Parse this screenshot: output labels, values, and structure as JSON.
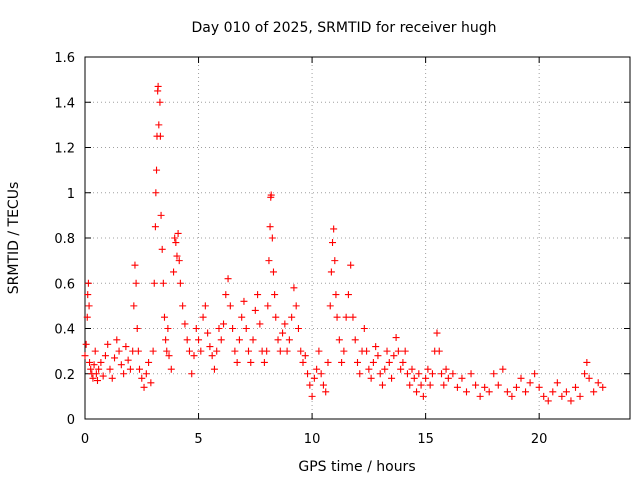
{
  "chart_data": {
    "type": "scatter",
    "title": "Day 010 of 2025, SRMTID for receiver hugh",
    "xlabel": "GPS time / hours",
    "ylabel": "SRMTID / TECUs",
    "xlim": [
      0,
      24
    ],
    "ylim": [
      0,
      1.6
    ],
    "x_ticks": [
      0,
      5,
      10,
      15,
      20
    ],
    "x_tick_labels": [
      "0",
      "5",
      "10",
      "15",
      "20"
    ],
    "y_ticks": [
      0,
      0.2,
      0.4,
      0.6,
      0.8,
      1,
      1.2,
      1.4,
      1.6
    ],
    "y_tick_labels": [
      "0",
      "0.2",
      "0.4",
      "0.6",
      "0.8",
      "1",
      "1.2",
      "1.4",
      "1.6"
    ],
    "grid": true,
    "marker": "+",
    "color": "#ff0000",
    "series": [
      {
        "name": "SRMTID",
        "points": [
          [
            0.0,
            0.28
          ],
          [
            0.05,
            0.33
          ],
          [
            0.1,
            0.45
          ],
          [
            0.12,
            0.55
          ],
          [
            0.15,
            0.6
          ],
          [
            0.18,
            0.5
          ],
          [
            0.2,
            0.25
          ],
          [
            0.25,
            0.22
          ],
          [
            0.3,
            0.2
          ],
          [
            0.35,
            0.18
          ],
          [
            0.4,
            0.24
          ],
          [
            0.45,
            0.3
          ],
          [
            0.5,
            0.2
          ],
          [
            0.55,
            0.17
          ],
          [
            0.6,
            0.22
          ],
          [
            0.7,
            0.25
          ],
          [
            0.8,
            0.19
          ],
          [
            0.9,
            0.28
          ],
          [
            1.0,
            0.33
          ],
          [
            1.1,
            0.22
          ],
          [
            1.2,
            0.18
          ],
          [
            1.3,
            0.27
          ],
          [
            1.4,
            0.35
          ],
          [
            1.5,
            0.3
          ],
          [
            1.6,
            0.24
          ],
          [
            1.7,
            0.2
          ],
          [
            1.8,
            0.32
          ],
          [
            1.9,
            0.26
          ],
          [
            2.0,
            0.22
          ],
          [
            2.1,
            0.3
          ],
          [
            2.15,
            0.5
          ],
          [
            2.2,
            0.68
          ],
          [
            2.25,
            0.6
          ],
          [
            2.3,
            0.4
          ],
          [
            2.35,
            0.3
          ],
          [
            2.4,
            0.22
          ],
          [
            2.5,
            0.18
          ],
          [
            2.6,
            0.14
          ],
          [
            2.7,
            0.2
          ],
          [
            2.8,
            0.25
          ],
          [
            2.9,
            0.16
          ],
          [
            3.0,
            0.3
          ],
          [
            3.05,
            0.6
          ],
          [
            3.1,
            0.85
          ],
          [
            3.12,
            1.0
          ],
          [
            3.15,
            1.1
          ],
          [
            3.17,
            1.25
          ],
          [
            3.2,
            1.45
          ],
          [
            3.22,
            1.47
          ],
          [
            3.25,
            1.3
          ],
          [
            3.3,
            1.4
          ],
          [
            3.32,
            1.25
          ],
          [
            3.35,
            0.9
          ],
          [
            3.4,
            0.75
          ],
          [
            3.45,
            0.6
          ],
          [
            3.5,
            0.45
          ],
          [
            3.55,
            0.35
          ],
          [
            3.6,
            0.3
          ],
          [
            3.65,
            0.4
          ],
          [
            3.7,
            0.28
          ],
          [
            3.8,
            0.22
          ],
          [
            3.9,
            0.65
          ],
          [
            3.95,
            0.8
          ],
          [
            4.0,
            0.78
          ],
          [
            4.05,
            0.72
          ],
          [
            4.1,
            0.82
          ],
          [
            4.15,
            0.7
          ],
          [
            4.2,
            0.6
          ],
          [
            4.3,
            0.5
          ],
          [
            4.4,
            0.42
          ],
          [
            4.5,
            0.35
          ],
          [
            4.6,
            0.3
          ],
          [
            4.7,
            0.2
          ],
          [
            4.8,
            0.28
          ],
          [
            4.9,
            0.4
          ],
          [
            5.0,
            0.35
          ],
          [
            5.1,
            0.3
          ],
          [
            5.2,
            0.45
          ],
          [
            5.3,
            0.5
          ],
          [
            5.4,
            0.38
          ],
          [
            5.5,
            0.32
          ],
          [
            5.6,
            0.28
          ],
          [
            5.7,
            0.22
          ],
          [
            5.8,
            0.3
          ],
          [
            5.9,
            0.4
          ],
          [
            6.0,
            0.35
          ],
          [
            6.1,
            0.42
          ],
          [
            6.2,
            0.55
          ],
          [
            6.3,
            0.62
          ],
          [
            6.4,
            0.5
          ],
          [
            6.5,
            0.4
          ],
          [
            6.6,
            0.3
          ],
          [
            6.7,
            0.25
          ],
          [
            6.8,
            0.35
          ],
          [
            6.9,
            0.45
          ],
          [
            7.0,
            0.52
          ],
          [
            7.1,
            0.4
          ],
          [
            7.2,
            0.3
          ],
          [
            7.3,
            0.25
          ],
          [
            7.4,
            0.35
          ],
          [
            7.5,
            0.48
          ],
          [
            7.6,
            0.55
          ],
          [
            7.7,
            0.42
          ],
          [
            7.8,
            0.3
          ],
          [
            7.9,
            0.25
          ],
          [
            8.0,
            0.3
          ],
          [
            8.05,
            0.5
          ],
          [
            8.1,
            0.7
          ],
          [
            8.15,
            0.85
          ],
          [
            8.18,
            0.98
          ],
          [
            8.2,
            0.99
          ],
          [
            8.25,
            0.8
          ],
          [
            8.3,
            0.65
          ],
          [
            8.35,
            0.55
          ],
          [
            8.4,
            0.45
          ],
          [
            8.5,
            0.35
          ],
          [
            8.6,
            0.3
          ],
          [
            8.7,
            0.38
          ],
          [
            8.8,
            0.42
          ],
          [
            8.9,
            0.3
          ],
          [
            9.0,
            0.35
          ],
          [
            9.1,
            0.45
          ],
          [
            9.2,
            0.58
          ],
          [
            9.3,
            0.5
          ],
          [
            9.4,
            0.4
          ],
          [
            9.5,
            0.3
          ],
          [
            9.6,
            0.25
          ],
          [
            9.7,
            0.28
          ],
          [
            9.8,
            0.2
          ],
          [
            9.9,
            0.15
          ],
          [
            10.0,
            0.1
          ],
          [
            10.1,
            0.18
          ],
          [
            10.2,
            0.22
          ],
          [
            10.3,
            0.3
          ],
          [
            10.4,
            0.2
          ],
          [
            10.5,
            0.15
          ],
          [
            10.6,
            0.12
          ],
          [
            10.7,
            0.25
          ],
          [
            10.8,
            0.5
          ],
          [
            10.85,
            0.65
          ],
          [
            10.9,
            0.78
          ],
          [
            10.95,
            0.84
          ],
          [
            11.0,
            0.7
          ],
          [
            11.05,
            0.55
          ],
          [
            11.1,
            0.45
          ],
          [
            11.2,
            0.35
          ],
          [
            11.3,
            0.25
          ],
          [
            11.4,
            0.3
          ],
          [
            11.5,
            0.45
          ],
          [
            11.6,
            0.55
          ],
          [
            11.7,
            0.68
          ],
          [
            11.8,
            0.45
          ],
          [
            11.9,
            0.35
          ],
          [
            12.0,
            0.25
          ],
          [
            12.1,
            0.2
          ],
          [
            12.2,
            0.3
          ],
          [
            12.3,
            0.4
          ],
          [
            12.4,
            0.3
          ],
          [
            12.5,
            0.22
          ],
          [
            12.6,
            0.18
          ],
          [
            12.7,
            0.25
          ],
          [
            12.8,
            0.32
          ],
          [
            12.9,
            0.28
          ],
          [
            13.0,
            0.2
          ],
          [
            13.1,
            0.15
          ],
          [
            13.2,
            0.22
          ],
          [
            13.3,
            0.3
          ],
          [
            13.4,
            0.25
          ],
          [
            13.5,
            0.18
          ],
          [
            13.6,
            0.28
          ],
          [
            13.7,
            0.36
          ],
          [
            13.8,
            0.3
          ],
          [
            13.9,
            0.22
          ],
          [
            14.0,
            0.25
          ],
          [
            14.1,
            0.3
          ],
          [
            14.2,
            0.2
          ],
          [
            14.3,
            0.15
          ],
          [
            14.4,
            0.22
          ],
          [
            14.5,
            0.18
          ],
          [
            14.6,
            0.12
          ],
          [
            14.7,
            0.2
          ],
          [
            14.8,
            0.15
          ],
          [
            14.9,
            0.1
          ],
          [
            15.0,
            0.18
          ],
          [
            15.1,
            0.22
          ],
          [
            15.2,
            0.15
          ],
          [
            15.3,
            0.2
          ],
          [
            15.4,
            0.3
          ],
          [
            15.5,
            0.38
          ],
          [
            15.6,
            0.3
          ],
          [
            15.7,
            0.2
          ],
          [
            15.8,
            0.15
          ],
          [
            15.9,
            0.22
          ],
          [
            16.0,
            0.18
          ],
          [
            16.2,
            0.2
          ],
          [
            16.4,
            0.14
          ],
          [
            16.6,
            0.18
          ],
          [
            16.8,
            0.12
          ],
          [
            17.0,
            0.2
          ],
          [
            17.2,
            0.15
          ],
          [
            17.4,
            0.1
          ],
          [
            17.6,
            0.14
          ],
          [
            17.8,
            0.12
          ],
          [
            18.0,
            0.2
          ],
          [
            18.2,
            0.15
          ],
          [
            18.4,
            0.22
          ],
          [
            18.6,
            0.12
          ],
          [
            18.8,
            0.1
          ],
          [
            19.0,
            0.14
          ],
          [
            19.2,
            0.18
          ],
          [
            19.4,
            0.12
          ],
          [
            19.6,
            0.16
          ],
          [
            19.8,
            0.2
          ],
          [
            20.0,
            0.14
          ],
          [
            20.2,
            0.1
          ],
          [
            20.4,
            0.08
          ],
          [
            20.6,
            0.12
          ],
          [
            20.8,
            0.16
          ],
          [
            21.0,
            0.1
          ],
          [
            21.2,
            0.12
          ],
          [
            21.4,
            0.08
          ],
          [
            21.6,
            0.14
          ],
          [
            21.8,
            0.1
          ],
          [
            22.0,
            0.2
          ],
          [
            22.1,
            0.25
          ],
          [
            22.2,
            0.18
          ],
          [
            22.4,
            0.12
          ],
          [
            22.6,
            0.16
          ],
          [
            22.8,
            0.14
          ]
        ]
      }
    ]
  }
}
